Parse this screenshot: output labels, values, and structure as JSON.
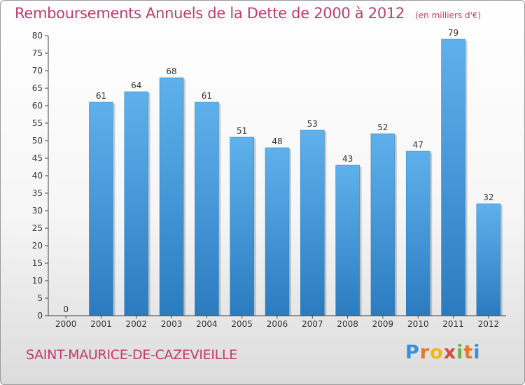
{
  "header": {
    "title": "Remboursements Annuels de la Dette de 2000 à 2012",
    "unit": "(en milliers d'€)"
  },
  "footer": {
    "commune": "SAINT-MAURICE-DE-CAZEVIEILLE",
    "logo_letters": [
      "P",
      "r",
      "o",
      "x",
      "i",
      "t",
      "i"
    ],
    "logo_colors": [
      "#3a8fd8",
      "#e8762c",
      "#f2b41f",
      "#d84a3a",
      "#6ab04c",
      "#e8762c",
      "#3a8fd8"
    ]
  },
  "colors": {
    "bar_top": "#5fb1ec",
    "bar_bottom": "#2a7cc0",
    "accent": "#c23a6a",
    "axis": "#444444"
  },
  "chart_data": {
    "type": "bar",
    "title": "Remboursements Annuels de la Dette de 2000 à 2012",
    "subtitle": "(en milliers d'€)",
    "categories": [
      "2000",
      "2001",
      "2002",
      "2003",
      "2004",
      "2005",
      "2006",
      "2007",
      "2008",
      "2009",
      "2010",
      "2011",
      "2012"
    ],
    "values": [
      0,
      61,
      64,
      68,
      61,
      51,
      48,
      53,
      43,
      52,
      47,
      79,
      32
    ],
    "ylim": [
      0,
      80
    ],
    "yticks": [
      0,
      5,
      10,
      15,
      20,
      25,
      30,
      35,
      40,
      45,
      50,
      55,
      60,
      65,
      70,
      75,
      80
    ],
    "grid": false,
    "legend": "none"
  }
}
